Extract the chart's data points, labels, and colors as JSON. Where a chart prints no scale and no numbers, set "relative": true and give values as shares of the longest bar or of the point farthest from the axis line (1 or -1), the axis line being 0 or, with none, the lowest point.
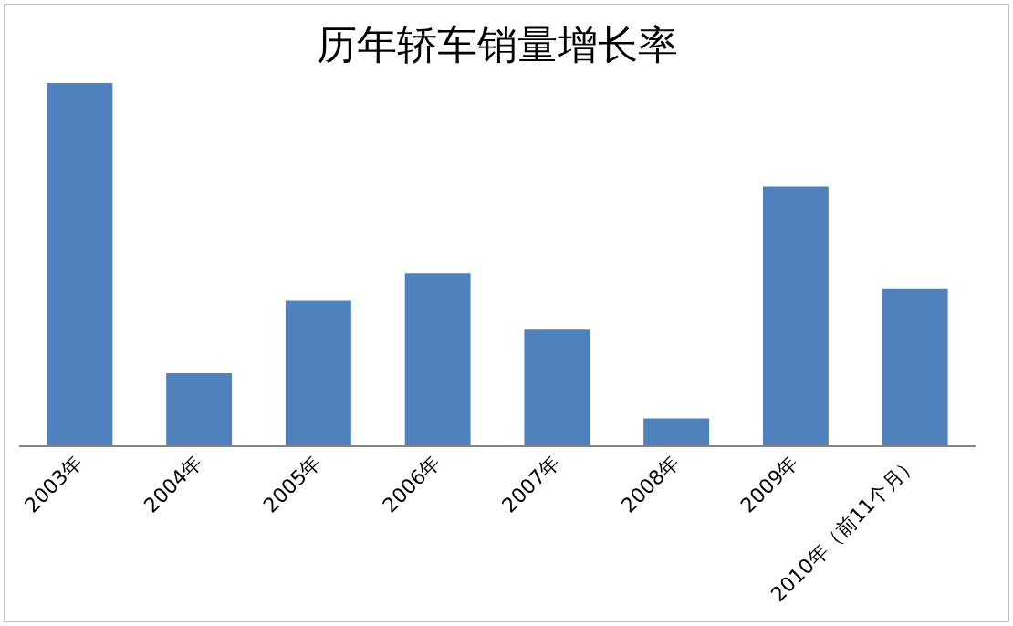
{
  "chart_data": {
    "type": "bar",
    "title": "历年轿车销量增长率",
    "relative": true,
    "categories": [
      "2003年",
      "2004年",
      "2005年",
      "2006年",
      "2007年",
      "2008年",
      "2009年",
      "2010年（前11个月）"
    ],
    "values": [
      1,
      0.2,
      0.4,
      0.476,
      0.32,
      0.076,
      0.714,
      0.432
    ],
    "color": "#4f81bd",
    "grid": false,
    "legend": false
  }
}
